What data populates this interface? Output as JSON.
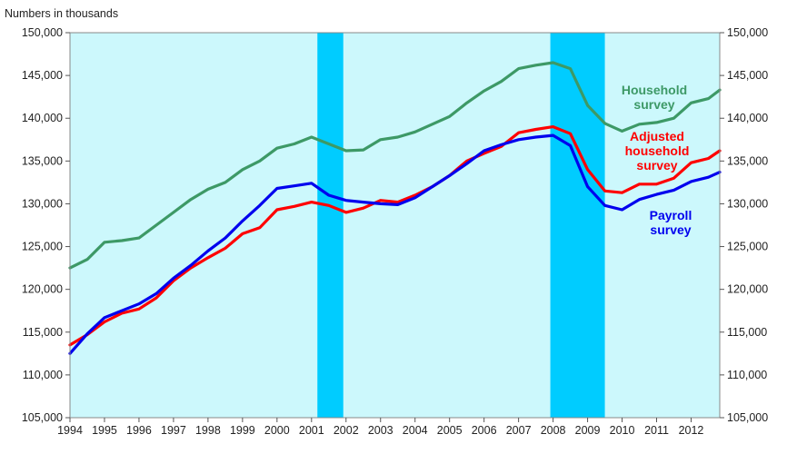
{
  "chart_data": {
    "type": "line",
    "units_label": "Numbers in thousands",
    "x_ticks": [
      "1994",
      "1995",
      "1996",
      "1997",
      "1998",
      "1999",
      "2000",
      "2001",
      "2002",
      "2003",
      "2004",
      "2005",
      "2006",
      "2007",
      "2008",
      "2009",
      "2010",
      "2011",
      "2012"
    ],
    "x_range": [
      1994.0,
      2012.83
    ],
    "ylim": [
      105000,
      150000
    ],
    "y_ticks": [
      "105,000",
      "110,000",
      "115,000",
      "120,000",
      "125,000",
      "130,000",
      "135,000",
      "140,000",
      "145,000",
      "150,000"
    ],
    "y_tick_values": [
      105000,
      110000,
      115000,
      120000,
      125000,
      130000,
      135000,
      140000,
      145000,
      150000
    ],
    "grid": false,
    "recessions": [
      {
        "start": 2001.17,
        "end": 2001.92
      },
      {
        "start": 2007.92,
        "end": 2009.5
      }
    ],
    "colors": {
      "plot_bg": "#ccf8fc",
      "recession": "#00ccff",
      "household": "#3d9966",
      "adjusted": "#ff0000",
      "payroll": "#0000ee"
    },
    "series": [
      {
        "key": "household",
        "name": "Household survey",
        "label_lines": [
          "Household",
          "survey"
        ],
        "x": [
          1994.0,
          1994.5,
          1995.0,
          1995.5,
          1996.0,
          1996.5,
          1997.0,
          1997.5,
          1998.0,
          1998.5,
          1999.0,
          1999.5,
          2000.0,
          2000.5,
          2001.0,
          2001.5,
          2002.0,
          2002.5,
          2003.0,
          2003.5,
          2004.0,
          2004.5,
          2005.0,
          2005.5,
          2006.0,
          2006.5,
          2007.0,
          2007.5,
          2008.0,
          2008.5,
          2009.0,
          2009.5,
          2010.0,
          2010.5,
          2011.0,
          2011.5,
          2012.0,
          2012.5,
          2012.83
        ],
        "y": [
          122500,
          123500,
          125500,
          125700,
          126000,
          127500,
          129000,
          130500,
          131700,
          132500,
          134000,
          135000,
          136500,
          137000,
          137800,
          137000,
          136200,
          136300,
          137500,
          137800,
          138400,
          139300,
          140200,
          141800,
          143200,
          144300,
          145800,
          146200,
          146500,
          145800,
          141500,
          139400,
          138500,
          139300,
          139500,
          140000,
          141800,
          142300,
          143300
        ]
      },
      {
        "key": "adjusted",
        "name": "Adjusted household survey",
        "label_lines": [
          "Adjusted",
          "household",
          "survey"
        ],
        "x": [
          1994.0,
          1994.5,
          1995.0,
          1995.5,
          1996.0,
          1996.5,
          1997.0,
          1997.5,
          1998.0,
          1998.5,
          1999.0,
          1999.5,
          2000.0,
          2000.5,
          2001.0,
          2001.5,
          2002.0,
          2002.5,
          2003.0,
          2003.5,
          2004.0,
          2004.5,
          2005.0,
          2005.5,
          2006.0,
          2006.5,
          2007.0,
          2007.5,
          2008.0,
          2008.5,
          2009.0,
          2009.5,
          2010.0,
          2010.5,
          2011.0,
          2011.5,
          2012.0,
          2012.5,
          2012.83
        ],
        "y": [
          113500,
          114700,
          116200,
          117200,
          117700,
          119000,
          121000,
          122500,
          123700,
          124800,
          126500,
          127200,
          129300,
          129700,
          130200,
          129800,
          129000,
          129500,
          130400,
          130200,
          131000,
          132000,
          133300,
          135000,
          135900,
          136700,
          138300,
          138700,
          139000,
          138200,
          134000,
          131500,
          131300,
          132300,
          132300,
          133000,
          134800,
          135300,
          136200
        ]
      },
      {
        "key": "payroll",
        "name": "Payroll survey",
        "label_lines": [
          "Payroll",
          "survey"
        ],
        "x": [
          1994.0,
          1994.5,
          1995.0,
          1995.5,
          1996.0,
          1996.5,
          1997.0,
          1997.5,
          1998.0,
          1998.5,
          1999.0,
          1999.5,
          2000.0,
          2000.5,
          2001.0,
          2001.5,
          2002.0,
          2002.5,
          2003.0,
          2003.5,
          2004.0,
          2004.5,
          2005.0,
          2005.5,
          2006.0,
          2006.5,
          2007.0,
          2007.5,
          2008.0,
          2008.5,
          2009.0,
          2009.5,
          2010.0,
          2010.5,
          2011.0,
          2011.5,
          2012.0,
          2012.5,
          2012.83
        ],
        "y": [
          112500,
          114800,
          116700,
          117500,
          118300,
          119500,
          121300,
          122800,
          124500,
          126000,
          128000,
          129800,
          131800,
          132100,
          132400,
          131000,
          130400,
          130200,
          130000,
          129900,
          130700,
          132000,
          133300,
          134700,
          136200,
          136900,
          137500,
          137800,
          138000,
          136800,
          132000,
          129800,
          129300,
          130500,
          131100,
          131600,
          132600,
          133100,
          133700
        ]
      }
    ]
  }
}
